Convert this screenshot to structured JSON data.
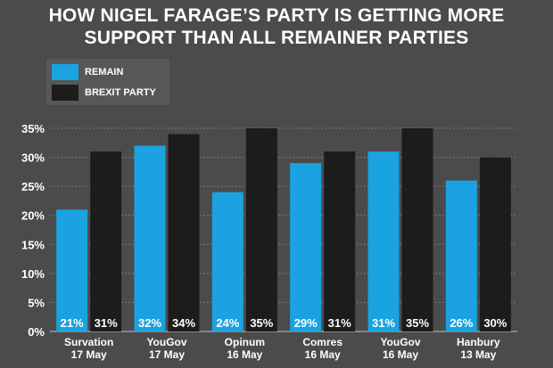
{
  "colors": {
    "background": "#4b4b4b",
    "remain": "#1aa3e0",
    "brexit": "#1c1c1c",
    "text": "#ffffff",
    "grid": "#7a7a7a"
  },
  "chart_data": {
    "type": "bar",
    "title": "HOW NIGEL FARAGE’S PARTY IS GETTING MORE SUPPORT THAN ALL REMAINER PARTIES",
    "title_lines": [
      "HOW NIGEL FARAGE’S PARTY IS GETTING MORE",
      "SUPPORT THAN ALL REMAINER PARTIES"
    ],
    "categories": [
      "Survation 17 May",
      "YouGov 17 May",
      "Opinum 16 May",
      "Comres 16 May",
      "YouGov 16 May",
      "Hanbury 13 May"
    ],
    "category_lines": [
      [
        "Survation",
        "17 May"
      ],
      [
        "YouGov",
        "17 May"
      ],
      [
        "Opinum",
        "16 May"
      ],
      [
        "Comres",
        "16 May"
      ],
      [
        "YouGov",
        "16 May"
      ],
      [
        "Hanbury",
        "13 May"
      ]
    ],
    "series": [
      {
        "name": "REMAIN",
        "color": "#1aa3e0",
        "values": [
          21,
          32,
          24,
          29,
          31,
          26
        ],
        "labels": [
          "21%",
          "32%",
          "24%",
          "29%",
          "31%",
          "26%"
        ]
      },
      {
        "name": "BREXIT PARTY",
        "color": "#1c1c1c",
        "values": [
          31,
          34,
          35,
          31,
          35,
          30
        ],
        "labels": [
          "31%",
          "34%",
          "35%",
          "31%",
          "35%",
          "30%"
        ]
      }
    ],
    "yticks": [
      0,
      5,
      10,
      15,
      20,
      25,
      30,
      35
    ],
    "ytick_labels": [
      "0%",
      "5%",
      "10%",
      "15%",
      "20%",
      "25%",
      "30%",
      "35%"
    ],
    "ylim": [
      0,
      35
    ],
    "grid": true,
    "legend": "top-left",
    "xlabel": "",
    "ylabel": ""
  }
}
